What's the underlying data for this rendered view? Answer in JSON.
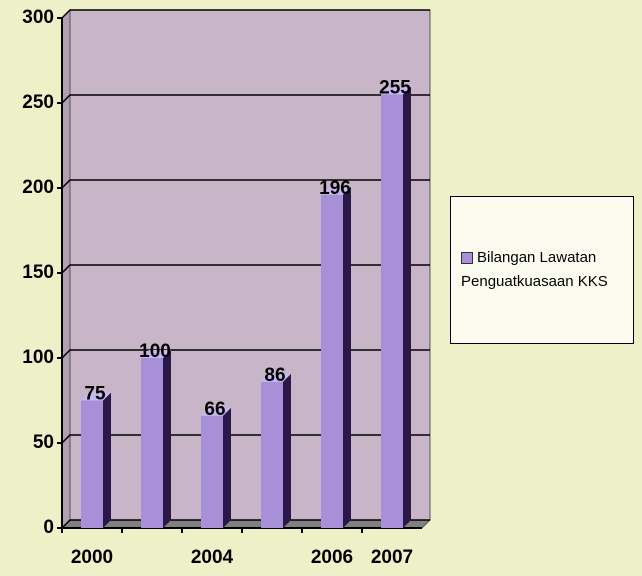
{
  "chart_data": {
    "type": "bar",
    "categories": [
      "2000",
      null,
      "2004",
      null,
      "2006",
      "2007"
    ],
    "series": [
      {
        "name": "Bilangan Lawatan Penguatkuasaan KKS",
        "color": "#a890d8",
        "values": [
          75,
          100,
          66,
          86,
          196,
          255
        ]
      }
    ],
    "ylim": [
      0,
      300
    ],
    "yticks": [
      0,
      50,
      100,
      150,
      200,
      250,
      300
    ],
    "grid": true,
    "legend": "right"
  }
}
